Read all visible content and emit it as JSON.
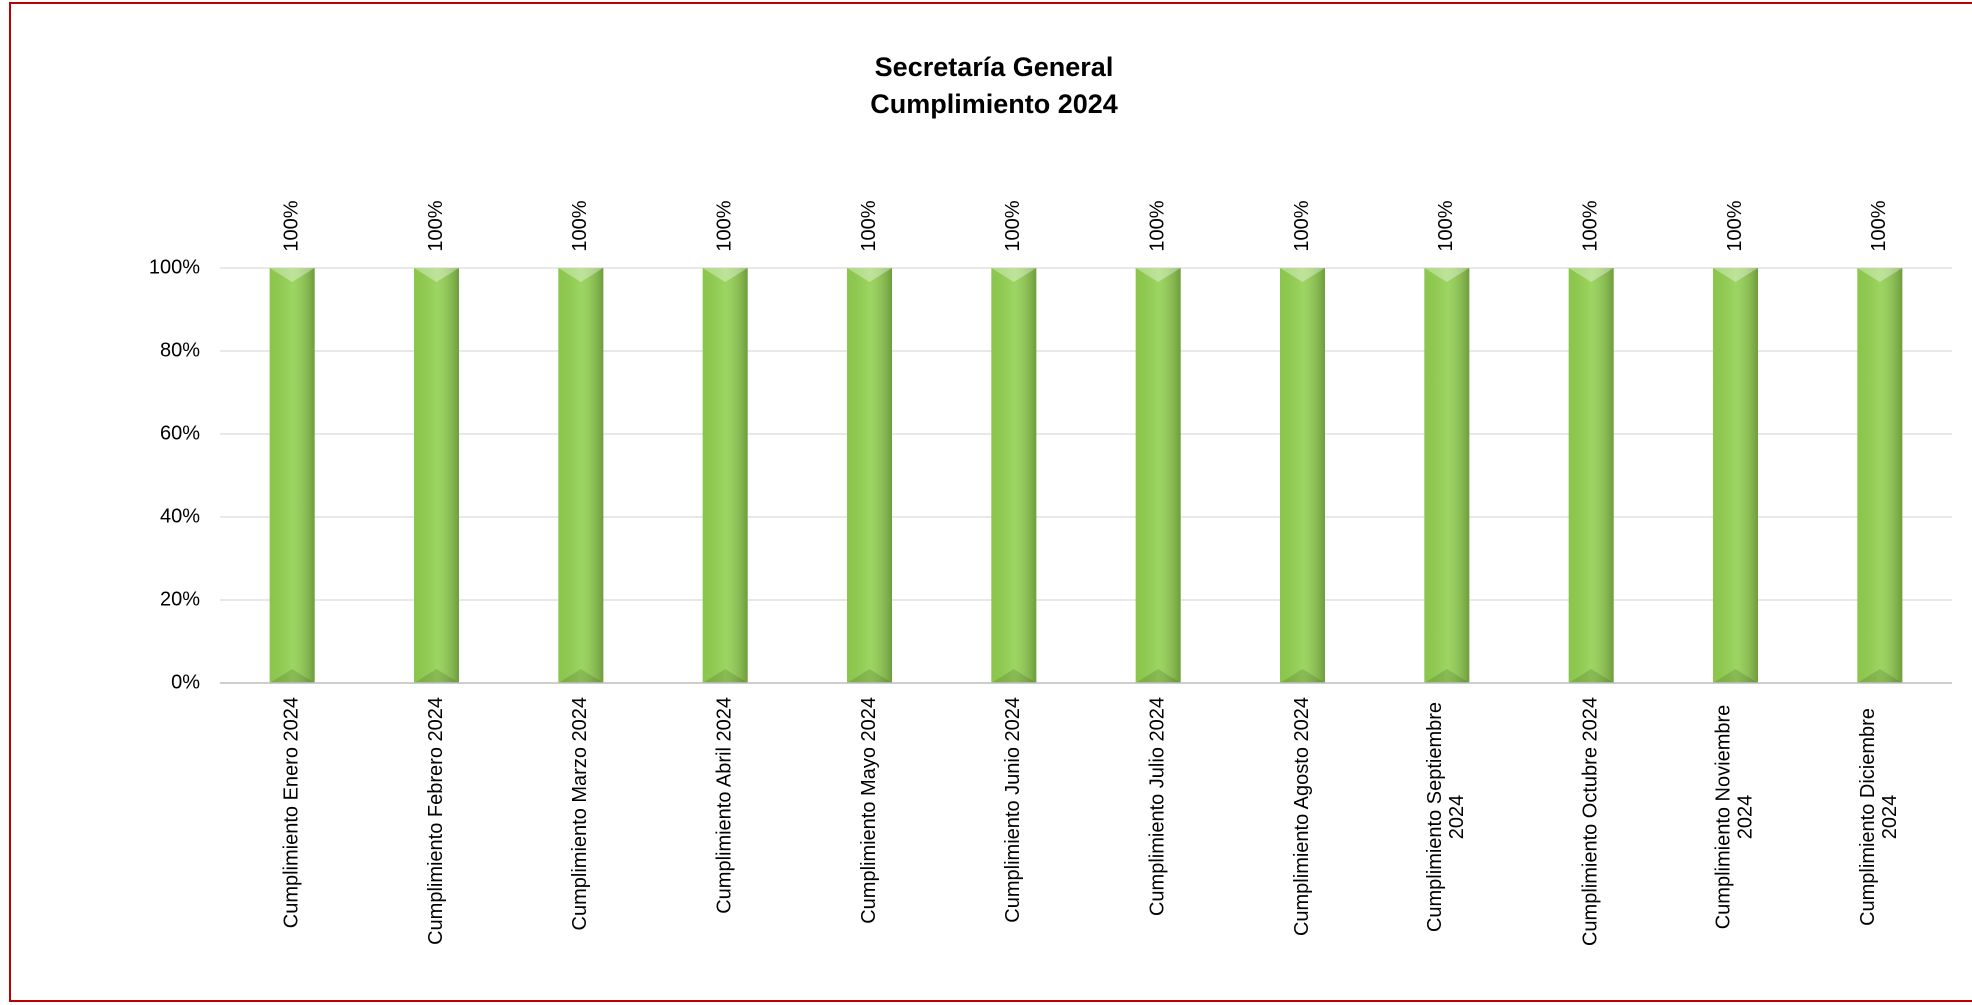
{
  "chart_data": {
    "type": "bar",
    "title": "Secretaría General",
    "subtitle": "Cumplimiento 2024",
    "categories": [
      "Cumplimiento Enero 2024",
      "Cumplimiento Febrero 2024",
      "Cumplimiento Marzo 2024",
      "Cumplimiento Abril 2024",
      "Cumplimiento Mayo 2024",
      "Cumplimiento Junio 2024",
      "Cumplimiento Julio 2024",
      "Cumplimiento Agosto 2024",
      "Cumplimiento Septiembre 2024",
      "Cumplimiento Octubre 2024",
      "Cumplimiento Noviembre 2024",
      "Cumplimiento Diciembre 2024"
    ],
    "values": [
      100,
      100,
      100,
      100,
      100,
      100,
      100,
      100,
      100,
      100,
      100,
      100
    ],
    "value_labels": [
      "100%",
      "100%",
      "100%",
      "100%",
      "100%",
      "100%",
      "100%",
      "100%",
      "100%",
      "100%",
      "100%",
      "100%"
    ],
    "color": "#92d050",
    "ylim": [
      0,
      100
    ],
    "yticks": [
      {
        "value": 0,
        "label": "0%"
      },
      {
        "value": 20,
        "label": "20%"
      },
      {
        "value": 40,
        "label": "40%"
      },
      {
        "value": 60,
        "label": "60%"
      },
      {
        "value": 80,
        "label": "80%"
      },
      {
        "value": 100,
        "label": "100%"
      }
    ],
    "grid": true
  }
}
